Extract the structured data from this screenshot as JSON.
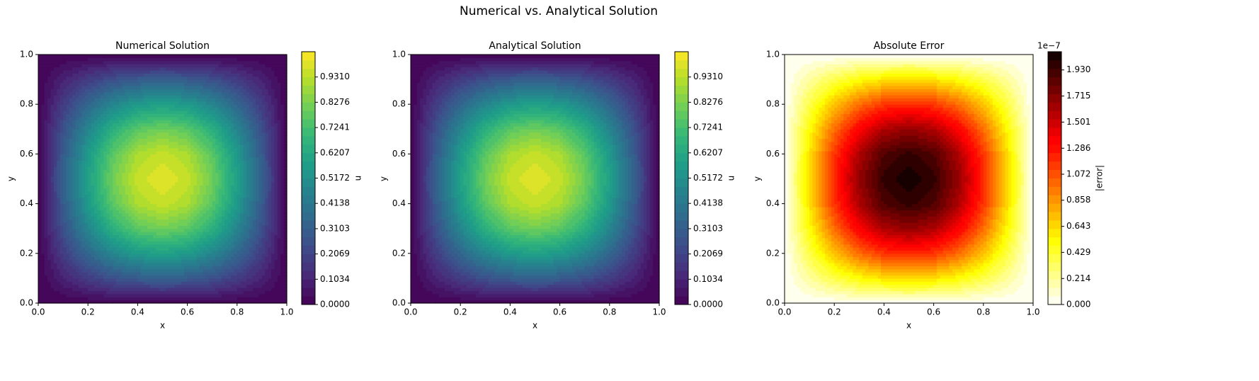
{
  "title": "Numerical vs. Analytical Solution",
  "chart_data": [
    {
      "type": "contour",
      "title": "Numerical Solution",
      "xlabel": "x",
      "ylabel": "y",
      "x": [
        0,
        0.1,
        0.2,
        0.3,
        0.4,
        0.5,
        0.6,
        0.7,
        0.8,
        0.9,
        1
      ],
      "y": [
        0,
        0.1,
        0.2,
        0.3,
        0.4,
        0.5,
        0.6,
        0.7,
        0.8,
        0.9,
        1
      ],
      "z": [
        [
          0,
          0,
          0,
          0,
          0,
          0,
          0,
          0,
          0,
          0,
          0
        ],
        [
          0,
          0.095,
          0.182,
          0.25,
          0.294,
          0.309,
          0.294,
          0.25,
          0.182,
          0.095,
          0
        ],
        [
          0,
          0.182,
          0.346,
          0.476,
          0.559,
          0.588,
          0.559,
          0.476,
          0.346,
          0.182,
          0
        ],
        [
          0,
          0.25,
          0.476,
          0.654,
          0.769,
          0.809,
          0.769,
          0.654,
          0.476,
          0.25,
          0
        ],
        [
          0,
          0.294,
          0.559,
          0.769,
          0.904,
          0.951,
          0.904,
          0.769,
          0.559,
          0.294,
          0
        ],
        [
          0,
          0.309,
          0.588,
          0.809,
          0.951,
          1,
          0.951,
          0.809,
          0.588,
          0.309,
          0
        ],
        [
          0,
          0.294,
          0.559,
          0.769,
          0.904,
          0.951,
          0.904,
          0.769,
          0.559,
          0.294,
          0
        ],
        [
          0,
          0.25,
          0.476,
          0.654,
          0.769,
          0.809,
          0.769,
          0.654,
          0.476,
          0.25,
          0
        ],
        [
          0,
          0.182,
          0.346,
          0.476,
          0.559,
          0.588,
          0.559,
          0.476,
          0.346,
          0.182,
          0
        ],
        [
          0,
          0.095,
          0.182,
          0.25,
          0.294,
          0.309,
          0.294,
          0.25,
          0.182,
          0.095,
          0
        ],
        [
          0,
          0,
          0,
          0,
          0,
          0,
          0,
          0,
          0,
          0,
          0
        ]
      ],
      "xlim": [
        0,
        1
      ],
      "ylim": [
        0,
        1
      ],
      "xticks": [
        {
          "value": 0,
          "label": "0.0"
        },
        {
          "value": 0.2,
          "label": "0.2"
        },
        {
          "value": 0.4,
          "label": "0.4"
        },
        {
          "value": 0.6,
          "label": "0.6"
        },
        {
          "value": 0.8,
          "label": "0.8"
        },
        {
          "value": 1,
          "label": "1.0"
        }
      ],
      "yticks": [
        {
          "value": 0,
          "label": "0.0"
        },
        {
          "value": 0.2,
          "label": "0.2"
        },
        {
          "value": 0.4,
          "label": "0.4"
        },
        {
          "value": 0.6,
          "label": "0.6"
        },
        {
          "value": 0.8,
          "label": "0.8"
        },
        {
          "value": 1,
          "label": "1.0"
        }
      ],
      "colorbar": {
        "label": "u",
        "colormap": "viridis",
        "levels": 30,
        "lim": [
          0,
          1.0345
        ],
        "ticks": [
          {
            "value": 0,
            "label": "0.0000"
          },
          {
            "value": 0.1034,
            "label": "0.1034"
          },
          {
            "value": 0.2069,
            "label": "0.2069"
          },
          {
            "value": 0.3103,
            "label": "0.3103"
          },
          {
            "value": 0.4138,
            "label": "0.4138"
          },
          {
            "value": 0.5172,
            "label": "0.5172"
          },
          {
            "value": 0.6207,
            "label": "0.6207"
          },
          {
            "value": 0.7241,
            "label": "0.7241"
          },
          {
            "value": 0.8276,
            "label": "0.8276"
          },
          {
            "value": 0.931,
            "label": "0.9310"
          }
        ]
      }
    },
    {
      "type": "contour",
      "title": "Analytical Solution",
      "xlabel": "x",
      "ylabel": "y",
      "x": [
        0,
        0.1,
        0.2,
        0.3,
        0.4,
        0.5,
        0.6,
        0.7,
        0.8,
        0.9,
        1
      ],
      "y": [
        0,
        0.1,
        0.2,
        0.3,
        0.4,
        0.5,
        0.6,
        0.7,
        0.8,
        0.9,
        1
      ],
      "z": [
        [
          0,
          0,
          0,
          0,
          0,
          0,
          0,
          0,
          0,
          0,
          0
        ],
        [
          0,
          0.095,
          0.182,
          0.25,
          0.294,
          0.309,
          0.294,
          0.25,
          0.182,
          0.095,
          0
        ],
        [
          0,
          0.182,
          0.346,
          0.476,
          0.559,
          0.588,
          0.559,
          0.476,
          0.346,
          0.182,
          0
        ],
        [
          0,
          0.25,
          0.476,
          0.654,
          0.769,
          0.809,
          0.769,
          0.654,
          0.476,
          0.25,
          0
        ],
        [
          0,
          0.294,
          0.559,
          0.769,
          0.904,
          0.951,
          0.904,
          0.769,
          0.559,
          0.294,
          0
        ],
        [
          0,
          0.309,
          0.588,
          0.809,
          0.951,
          1,
          0.951,
          0.809,
          0.588,
          0.309,
          0
        ],
        [
          0,
          0.294,
          0.559,
          0.769,
          0.904,
          0.951,
          0.904,
          0.769,
          0.559,
          0.294,
          0
        ],
        [
          0,
          0.25,
          0.476,
          0.654,
          0.769,
          0.809,
          0.769,
          0.654,
          0.476,
          0.25,
          0
        ],
        [
          0,
          0.182,
          0.346,
          0.476,
          0.559,
          0.588,
          0.559,
          0.476,
          0.346,
          0.182,
          0
        ],
        [
          0,
          0.095,
          0.182,
          0.25,
          0.294,
          0.309,
          0.294,
          0.25,
          0.182,
          0.095,
          0
        ],
        [
          0,
          0,
          0,
          0,
          0,
          0,
          0,
          0,
          0,
          0,
          0
        ]
      ],
      "xlim": [
        0,
        1
      ],
      "ylim": [
        0,
        1
      ],
      "xticks": [
        {
          "value": 0,
          "label": "0.0"
        },
        {
          "value": 0.2,
          "label": "0.2"
        },
        {
          "value": 0.4,
          "label": "0.4"
        },
        {
          "value": 0.6,
          "label": "0.6"
        },
        {
          "value": 0.8,
          "label": "0.8"
        },
        {
          "value": 1,
          "label": "1.0"
        }
      ],
      "yticks": [
        {
          "value": 0,
          "label": "0.0"
        },
        {
          "value": 0.2,
          "label": "0.2"
        },
        {
          "value": 0.4,
          "label": "0.4"
        },
        {
          "value": 0.6,
          "label": "0.6"
        },
        {
          "value": 0.8,
          "label": "0.8"
        },
        {
          "value": 1,
          "label": "1.0"
        }
      ],
      "colorbar": {
        "label": "u",
        "colormap": "viridis",
        "levels": 30,
        "lim": [
          0,
          1.0345
        ],
        "ticks": [
          {
            "value": 0,
            "label": "0.0000"
          },
          {
            "value": 0.1034,
            "label": "0.1034"
          },
          {
            "value": 0.2069,
            "label": "0.2069"
          },
          {
            "value": 0.3103,
            "label": "0.3103"
          },
          {
            "value": 0.4138,
            "label": "0.4138"
          },
          {
            "value": 0.5172,
            "label": "0.5172"
          },
          {
            "value": 0.6207,
            "label": "0.6207"
          },
          {
            "value": 0.7241,
            "label": "0.7241"
          },
          {
            "value": 0.8276,
            "label": "0.8276"
          },
          {
            "value": 0.931,
            "label": "0.9310"
          }
        ]
      }
    },
    {
      "type": "contour",
      "title": "Absolute Error",
      "xlabel": "x",
      "ylabel": "y",
      "x": [
        0,
        0.1,
        0.2,
        0.3,
        0.4,
        0.5,
        0.6,
        0.7,
        0.8,
        0.9,
        1
      ],
      "y": [
        0,
        0.1,
        0.2,
        0.3,
        0.4,
        0.5,
        0.6,
        0.7,
        0.8,
        0.9,
        1
      ],
      "z": [
        [
          0,
          0,
          0,
          0,
          0,
          0,
          0,
          0,
          0,
          0,
          0
        ],
        [
          0,
          0.198,
          0.376,
          0.518,
          0.608,
          0.64,
          0.608,
          0.518,
          0.376,
          0.198,
          0
        ],
        [
          0,
          0.376,
          0.716,
          0.985,
          1.158,
          1.217,
          1.158,
          0.985,
          0.716,
          0.376,
          0
        ],
        [
          0,
          0.518,
          0.985,
          1.355,
          1.593,
          1.675,
          1.593,
          1.355,
          0.985,
          0.518,
          0
        ],
        [
          0,
          0.608,
          1.158,
          1.593,
          1.872,
          1.969,
          1.872,
          1.593,
          1.158,
          0.608,
          0
        ],
        [
          0,
          0.64,
          1.217,
          1.675,
          1.969,
          2.07,
          1.969,
          1.675,
          1.217,
          0.64,
          0
        ],
        [
          0,
          0.608,
          1.158,
          1.593,
          1.872,
          1.969,
          1.872,
          1.593,
          1.158,
          0.608,
          0
        ],
        [
          0,
          0.518,
          0.985,
          1.355,
          1.593,
          1.675,
          1.593,
          1.355,
          0.985,
          0.518,
          0
        ],
        [
          0,
          0.376,
          0.716,
          0.985,
          1.158,
          1.217,
          1.158,
          0.985,
          0.716,
          0.376,
          0
        ],
        [
          0,
          0.198,
          0.376,
          0.518,
          0.608,
          0.64,
          0.608,
          0.518,
          0.376,
          0.198,
          0
        ],
        [
          0,
          0,
          0,
          0,
          0,
          0,
          0,
          0,
          0,
          0,
          0
        ]
      ],
      "xlim": [
        0,
        1
      ],
      "ylim": [
        0,
        1
      ],
      "xticks": [
        {
          "value": 0,
          "label": "0.0"
        },
        {
          "value": 0.2,
          "label": "0.2"
        },
        {
          "value": 0.4,
          "label": "0.4"
        },
        {
          "value": 0.6,
          "label": "0.6"
        },
        {
          "value": 0.8,
          "label": "0.8"
        },
        {
          "value": 1,
          "label": "1.0"
        }
      ],
      "yticks": [
        {
          "value": 0,
          "label": "0.0"
        },
        {
          "value": 0.2,
          "label": "0.2"
        },
        {
          "value": 0.4,
          "label": "0.4"
        },
        {
          "value": 0.6,
          "label": "0.6"
        },
        {
          "value": 0.8,
          "label": "0.8"
        },
        {
          "value": 1,
          "label": "1.0"
        }
      ],
      "colorbar": {
        "label": "|error|",
        "colormap": "hot_r",
        "levels": 30,
        "lim": [
          0,
          2.08
        ],
        "offset_text": "1e−7",
        "ticks": [
          {
            "value": 0,
            "label": "0.000"
          },
          {
            "value": 0.214,
            "label": "0.214"
          },
          {
            "value": 0.429,
            "label": "0.429"
          },
          {
            "value": 0.643,
            "label": "0.643"
          },
          {
            "value": 0.858,
            "label": "0.858"
          },
          {
            "value": 1.072,
            "label": "1.072"
          },
          {
            "value": 1.286,
            "label": "1.286"
          },
          {
            "value": 1.501,
            "label": "1.501"
          },
          {
            "value": 1.715,
            "label": "1.715"
          },
          {
            "value": 1.93,
            "label": "1.930"
          }
        ]
      }
    }
  ]
}
